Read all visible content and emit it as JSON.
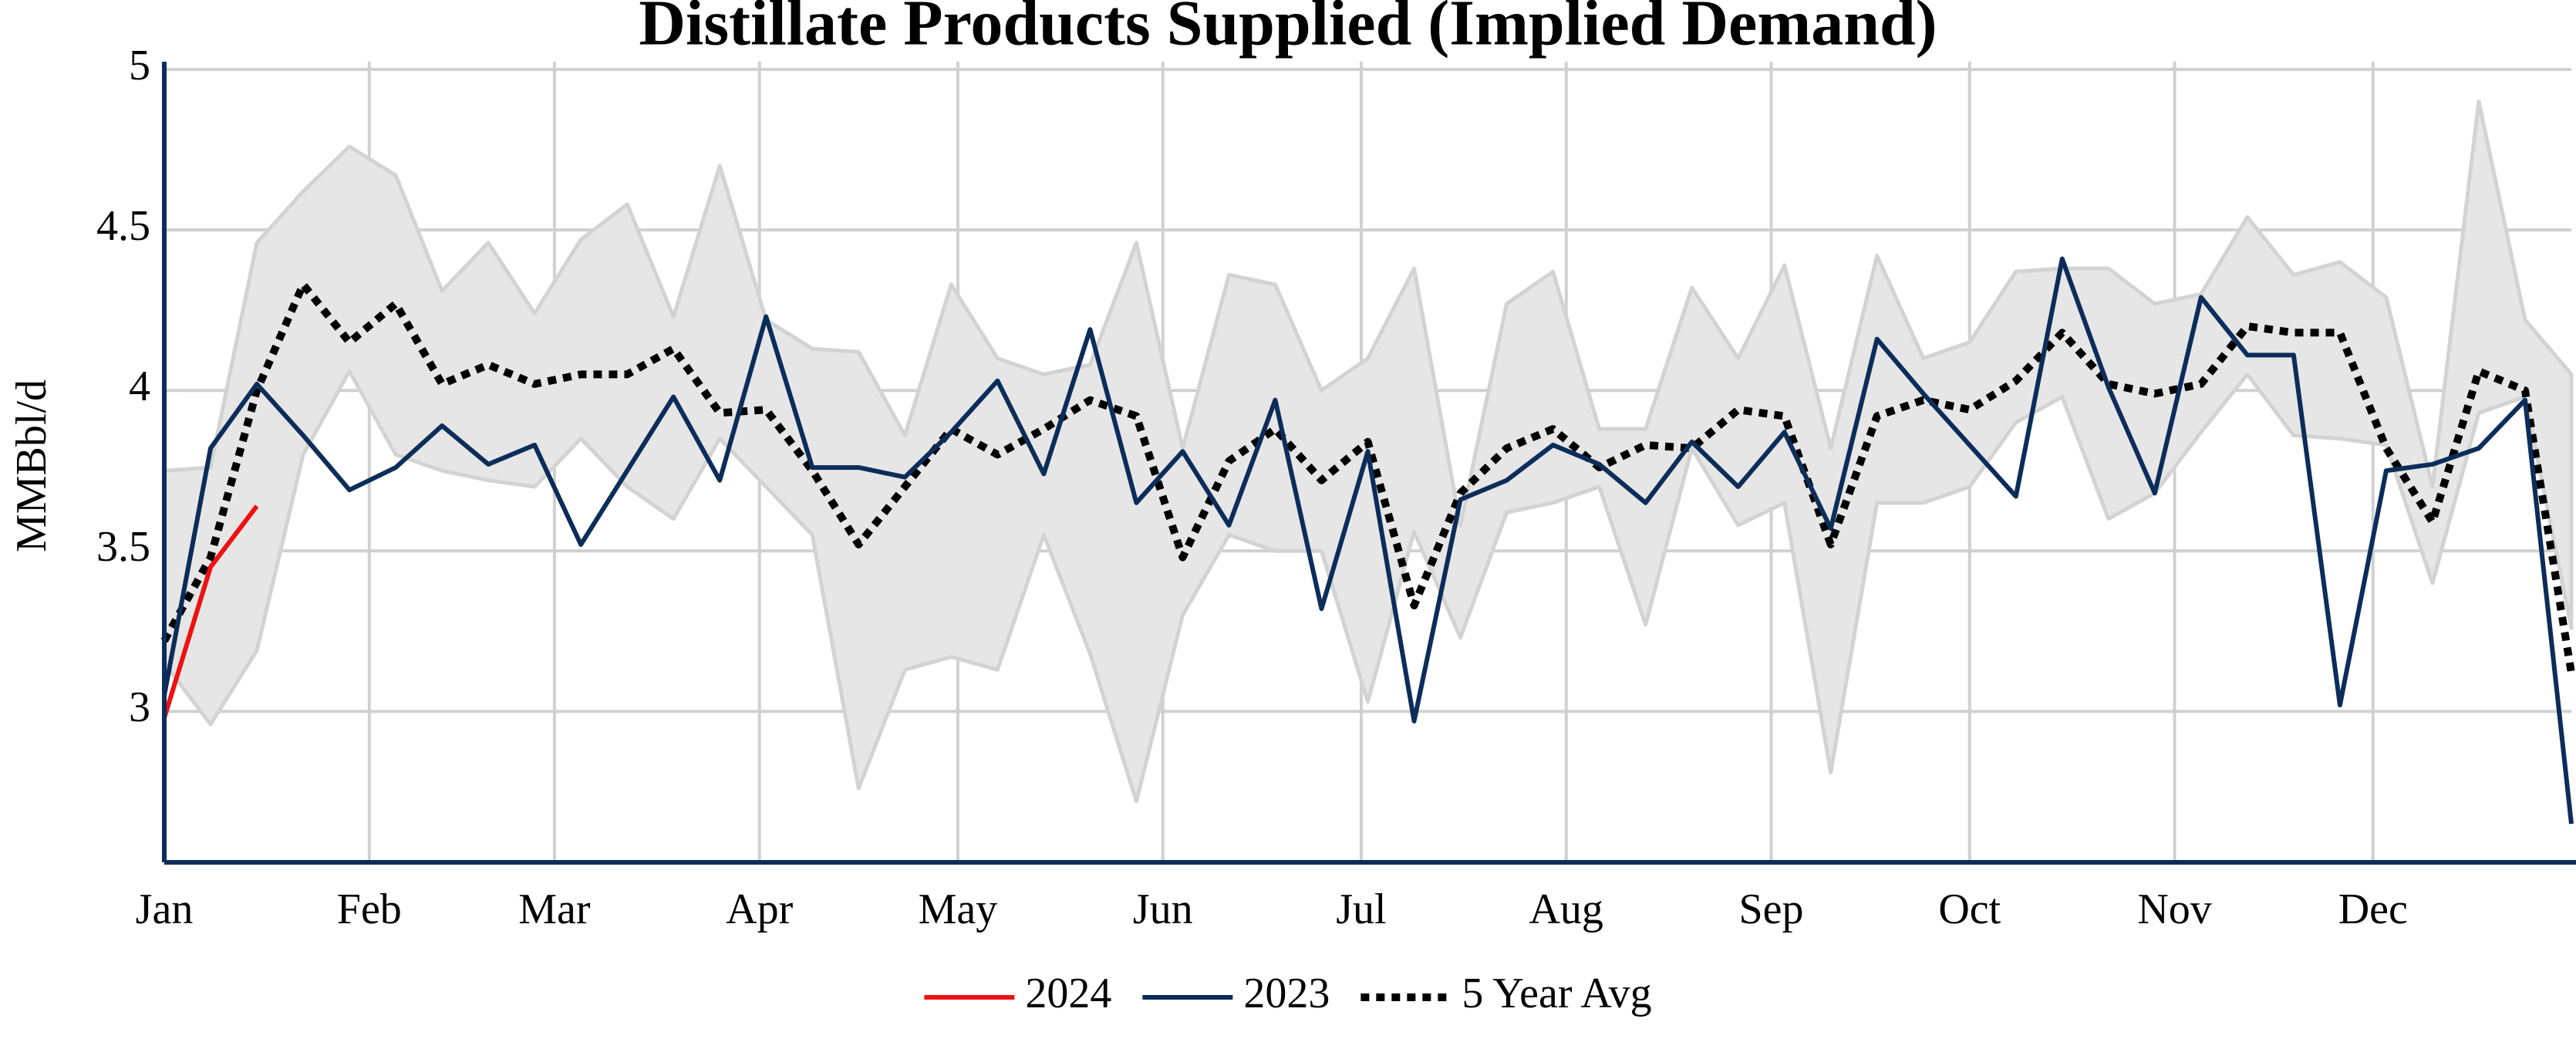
{
  "chart_data": {
    "type": "line",
    "title": "Distillate Products Supplied (Implied Demand)",
    "y_label": "MMBbl/d",
    "x": [
      0,
      7,
      14,
      21,
      28,
      35,
      42,
      49,
      56,
      63,
      70,
      77,
      84,
      91,
      98,
      105,
      112,
      119,
      126,
      133,
      140,
      147,
      154,
      161,
      168,
      175,
      182,
      189,
      196,
      203,
      210,
      217,
      224,
      231,
      238,
      245,
      252,
      259,
      266,
      273,
      280,
      287,
      294,
      301,
      308,
      315,
      322,
      329,
      336,
      343,
      350,
      357,
      364
    ],
    "xlim": [
      0,
      364
    ],
    "xticks": [
      {
        "value": 0,
        "label": "Jan"
      },
      {
        "value": 31,
        "label": "Feb"
      },
      {
        "value": 59,
        "label": "Mar"
      },
      {
        "value": 90,
        "label": "Apr"
      },
      {
        "value": 120,
        "label": "May"
      },
      {
        "value": 151,
        "label": "Jun"
      },
      {
        "value": 181,
        "label": "Jul"
      },
      {
        "value": 212,
        "label": "Aug"
      },
      {
        "value": 243,
        "label": "Sep"
      },
      {
        "value": 273,
        "label": "Oct"
      },
      {
        "value": 304,
        "label": "Nov"
      },
      {
        "value": 334,
        "label": "Dec"
      }
    ],
    "ylim": [
      2.53,
      5
    ],
    "yticks": [
      3,
      3.5,
      4,
      4.5,
      5
    ],
    "grid": true,
    "range": {
      "color": "#e6e6e6",
      "edge_color": "#d3d3d3",
      "upper": [
        3.75,
        3.76,
        4.46,
        4.62,
        4.76,
        4.67,
        4.31,
        4.46,
        4.24,
        4.47,
        4.58,
        4.23,
        4.7,
        4.22,
        4.13,
        4.12,
        3.86,
        4.33,
        4.1,
        4.05,
        4.08,
        4.46,
        3.82,
        4.36,
        4.33,
        4.0,
        4.1,
        4.38,
        3.58,
        4.27,
        4.37,
        3.88,
        3.88,
        4.32,
        4.1,
        4.39,
        3.82,
        4.42,
        4.1,
        4.15,
        4.37,
        4.38,
        4.38,
        4.27,
        4.3,
        4.54,
        4.36,
        4.4,
        4.29,
        3.7,
        4.9,
        4.22,
        4.05
      ],
      "lower": [
        3.15,
        2.96,
        3.19,
        3.8,
        4.06,
        3.8,
        3.75,
        3.72,
        3.7,
        3.85,
        3.7,
        3.6,
        3.85,
        3.7,
        3.55,
        2.76,
        3.13,
        3.17,
        3.13,
        3.55,
        3.18,
        2.72,
        3.3,
        3.55,
        3.5,
        3.5,
        3.03,
        3.56,
        3.23,
        3.62,
        3.65,
        3.7,
        3.27,
        3.82,
        3.58,
        3.65,
        2.81,
        3.65,
        3.65,
        3.7,
        3.9,
        3.98,
        3.6,
        3.68,
        3.87,
        4.05,
        3.86,
        3.85,
        3.83,
        3.4,
        3.93,
        3.98,
        3.26
      ]
    },
    "series": [
      {
        "name": "2024",
        "color": "#ee1111",
        "dash": "solid",
        "values": [
          2.98,
          3.45,
          3.64,
          null,
          null,
          null,
          null,
          null,
          null,
          null,
          null,
          null,
          null,
          null,
          null,
          null,
          null,
          null,
          null,
          null,
          null,
          null,
          null,
          null,
          null,
          null,
          null,
          null,
          null,
          null,
          null,
          null,
          null,
          null,
          null,
          null,
          null,
          null,
          null,
          null,
          null,
          null,
          null,
          null,
          null,
          null,
          null,
          null,
          null,
          null,
          null,
          null,
          null
        ]
      },
      {
        "name": "2023",
        "color": "#0c2d5a",
        "dash": "solid",
        "values": [
          3.05,
          3.82,
          4.02,
          3.86,
          3.69,
          3.76,
          3.89,
          3.77,
          3.83,
          3.52,
          3.75,
          3.98,
          3.72,
          4.23,
          3.76,
          3.76,
          3.73,
          3.87,
          4.03,
          3.74,
          4.19,
          3.65,
          3.81,
          3.58,
          3.97,
          3.32,
          3.81,
          2.97,
          3.66,
          3.72,
          3.83,
          3.77,
          3.65,
          3.84,
          3.7,
          3.87,
          3.57,
          4.16,
          3.99,
          3.83,
          3.67,
          4.41,
          4.01,
          3.68,
          4.29,
          4.11,
          4.11,
          3.02,
          3.75,
          3.77,
          3.82,
          3.97,
          2.65
        ]
      },
      {
        "name": "5 Year Avg",
        "color": "#000000",
        "dash": "dot",
        "values": [
          3.22,
          3.48,
          4.0,
          4.33,
          4.15,
          4.27,
          4.02,
          4.08,
          4.02,
          4.05,
          4.05,
          4.13,
          3.93,
          3.94,
          3.75,
          3.52,
          3.7,
          3.88,
          3.8,
          3.88,
          3.97,
          3.92,
          3.48,
          3.78,
          3.88,
          3.72,
          3.84,
          3.33,
          3.68,
          3.82,
          3.88,
          3.76,
          3.83,
          3.82,
          3.94,
          3.92,
          3.52,
          3.92,
          3.97,
          3.94,
          4.03,
          4.18,
          4.02,
          3.99,
          4.02,
          4.2,
          4.18,
          4.18,
          3.82,
          3.59,
          4.06,
          4.0,
          3.12
        ]
      }
    ],
    "axis_color": "#0c2d5a",
    "legend": "bottom"
  }
}
